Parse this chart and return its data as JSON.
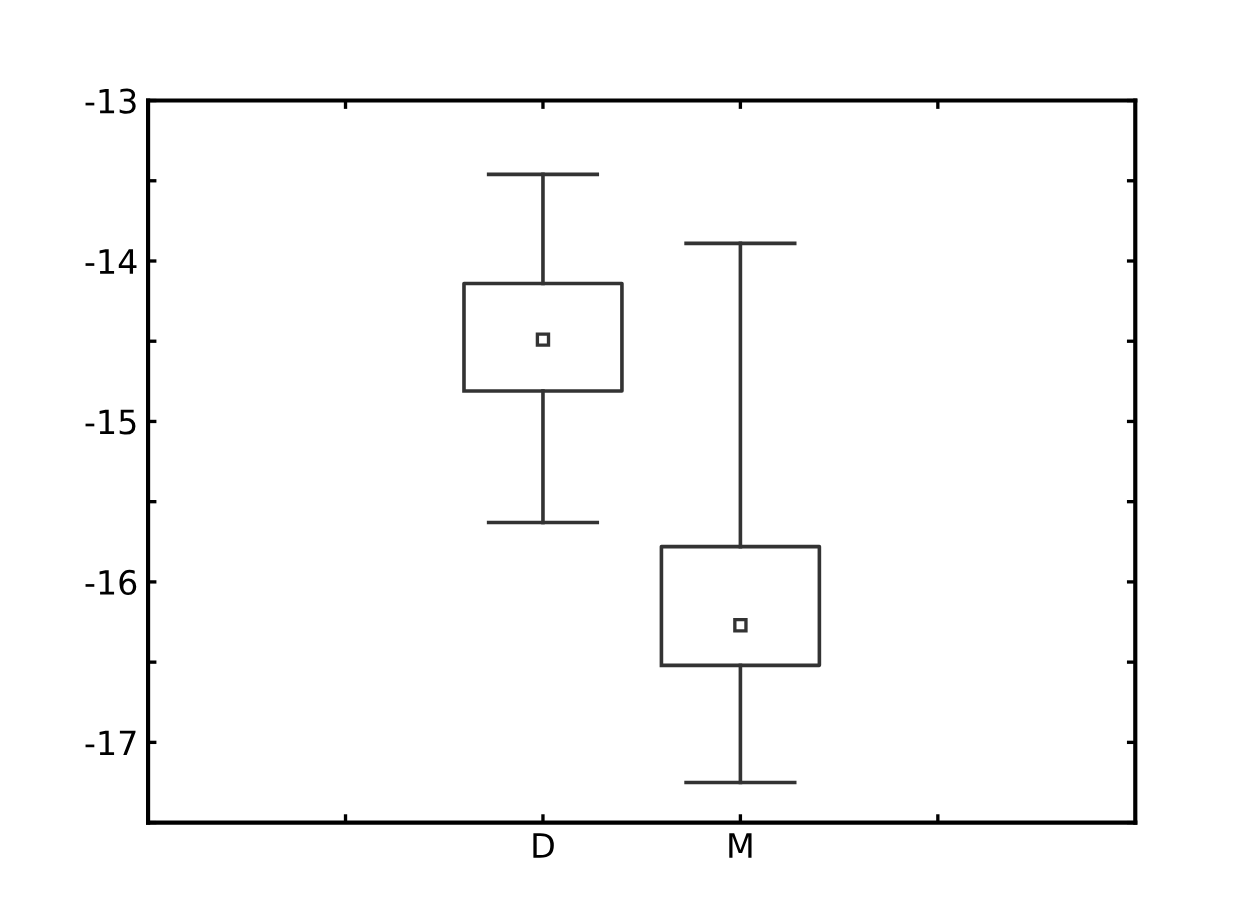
{
  "chart_data": {
    "type": "box",
    "categories": [
      "D",
      "M"
    ],
    "boxes": [
      {
        "low": -15.63,
        "q1": -14.81,
        "median": -14.49,
        "q3": -14.14,
        "high": -13.46
      },
      {
        "low": -17.25,
        "q1": -16.52,
        "median": -16.27,
        "q3": -15.78,
        "high": -13.89
      }
    ],
    "color": "#333333",
    "marker": "square",
    "ylim": [
      -17.5,
      -13
    ],
    "yticks": [
      -17,
      -16,
      -15,
      -14,
      -13,
      {
        "value": -17.5,
        "label": null
      },
      {
        "value": -16.5,
        "label": null
      },
      {
        "value": -15.5,
        "label": null
      },
      {
        "value": -14.5,
        "label": null
      },
      {
        "value": -13.5,
        "label": null
      }
    ],
    "grid": false,
    "legend": false
  }
}
